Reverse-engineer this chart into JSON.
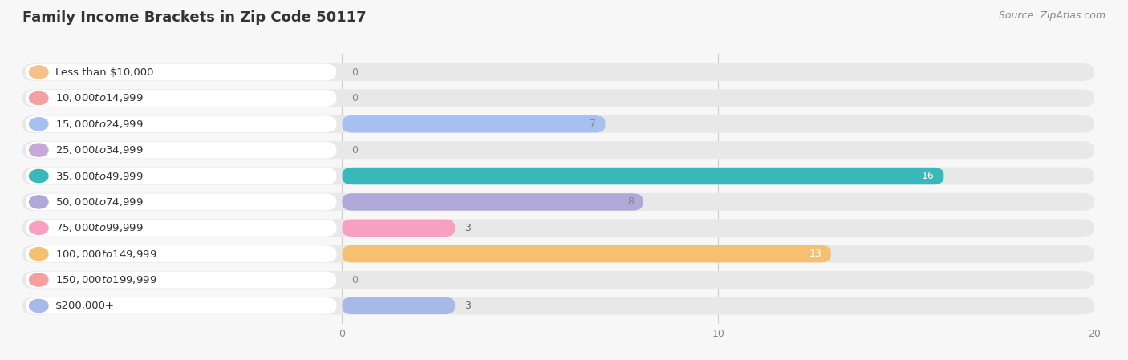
{
  "title": "Family Income Brackets in Zip Code 50117",
  "source": "Source: ZipAtlas.com",
  "categories": [
    "Less than $10,000",
    "$10,000 to $14,999",
    "$15,000 to $24,999",
    "$25,000 to $34,999",
    "$35,000 to $49,999",
    "$50,000 to $74,999",
    "$75,000 to $99,999",
    "$100,000 to $149,999",
    "$150,000 to $199,999",
    "$200,000+"
  ],
  "values": [
    0,
    0,
    7,
    0,
    16,
    8,
    3,
    13,
    0,
    3
  ],
  "bar_colors": [
    "#F5C08A",
    "#F5A0A0",
    "#A8C0F0",
    "#C8A8D8",
    "#38B8B8",
    "#B0A8D8",
    "#F8A0C0",
    "#F5C070",
    "#F5A0A0",
    "#A8B8E8"
  ],
  "label_colors": [
    "#888888",
    "#888888",
    "#888888",
    "#888888",
    "#ffffff",
    "#888888",
    "#888888",
    "#ffffff",
    "#888888",
    "#888888"
  ],
  "xlim_data": [
    0,
    20
  ],
  "xticks": [
    0,
    10,
    20
  ],
  "background_color": "#f7f7f7",
  "row_bg_color": "#e8e8e8",
  "label_bg_color": "#ffffff",
  "bar_height": 0.68,
  "title_fontsize": 13,
  "label_fontsize": 9.5,
  "source_fontsize": 9,
  "value_fontsize": 9
}
